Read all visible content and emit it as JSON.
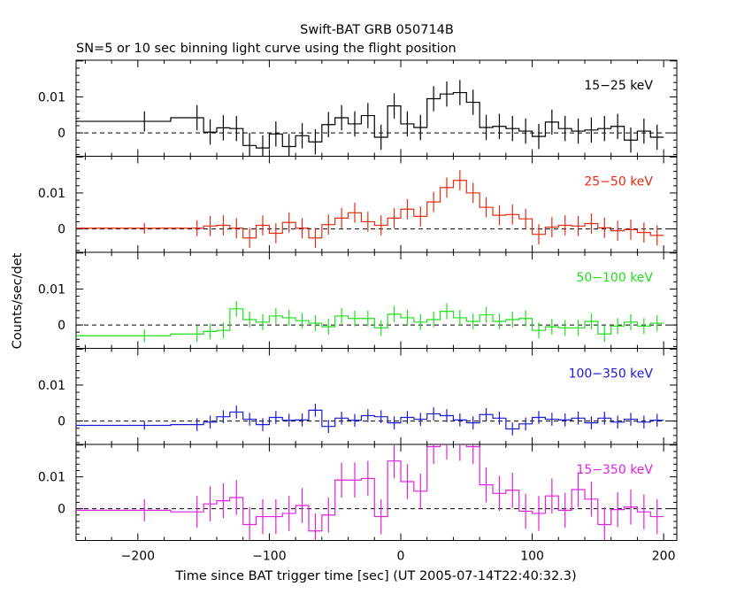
{
  "title": "Swift-BAT GRB 050714B",
  "subtitle": "SN=5 or 10 sec binning light curve using the flight position",
  "xlabel": "Time since BAT trigger time [sec] (UT 2005-07-14T22:40:32.3)",
  "ylabel": "Counts/sec/det",
  "chart_data": {
    "type": "line",
    "title": "Swift-BAT GRB 050714B",
    "subtitle": "SN=5 or 10 sec binning light curve using the flight position",
    "xlabel": "Time since BAT trigger time [sec] (UT 2005-07-14T22:40:32.3)",
    "ylabel": "Counts/sec/det",
    "xlim": [
      -247,
      210
    ],
    "xticks": [
      -200,
      -100,
      0,
      100,
      200
    ],
    "xticklabels": [
      "−200",
      "−100",
      "0",
      "100",
      "200"
    ],
    "yticks": [
      0,
      0.01
    ],
    "yticklabels": [
      "0",
      "0.01"
    ],
    "reference_line": 0,
    "panels": [
      {
        "label": "15−25 keV",
        "color": "#000000",
        "ylim": [
          -0.0065,
          0.0202
        ],
        "x": [
          -195,
          -155,
          -145,
          -135,
          -125,
          -115,
          -105,
          -95,
          -85,
          -75,
          -65,
          -55,
          -45,
          -35,
          -25,
          -15,
          -5,
          5,
          15,
          25,
          35,
          45,
          55,
          65,
          75,
          85,
          95,
          105,
          115,
          125,
          135,
          145,
          155,
          165,
          175,
          185,
          195
        ],
        "y": [
          0.0032,
          0.0042,
          0.0002,
          0.0014,
          0.0012,
          -0.0035,
          -0.0042,
          -0.0003,
          -0.0038,
          -0.0008,
          -0.0025,
          0.0023,
          0.0042,
          0.0025,
          0.0048,
          -0.0012,
          0.0075,
          0.0025,
          0.0015,
          0.0095,
          0.0108,
          0.0112,
          0.0085,
          0.0015,
          0.0018,
          0.0012,
          0.0005,
          -0.001,
          0.003,
          0.0012,
          0.0005,
          0.0008,
          0.0012,
          0.0018,
          -0.002,
          0.0005,
          -0.0012
        ],
        "err": [
          0.0028,
          0.0035,
          0.0035,
          0.0035,
          0.0035,
          0.0035,
          0.0035,
          0.0035,
          0.0035,
          0.0035,
          0.0035,
          0.0035,
          0.0035,
          0.0035,
          0.0035,
          0.0035,
          0.0035,
          0.0035,
          0.0035,
          0.0035,
          0.0035,
          0.0035,
          0.0035,
          0.0035,
          0.0035,
          0.0035,
          0.0035,
          0.0035,
          0.0035,
          0.0035,
          0.0035,
          0.0035,
          0.0035,
          0.0035,
          0.0035,
          0.0035,
          0.0035
        ]
      },
      {
        "label": "25−50 keV",
        "color": "#e82a10",
        "ylim": [
          -0.0065,
          0.0202
        ],
        "x": [
          -195,
          -155,
          -145,
          -135,
          -125,
          -115,
          -105,
          -95,
          -85,
          -75,
          -65,
          -55,
          -45,
          -35,
          -25,
          -15,
          -5,
          5,
          15,
          25,
          35,
          45,
          55,
          65,
          75,
          85,
          95,
          105,
          115,
          125,
          135,
          145,
          155,
          165,
          175,
          185,
          195
        ],
        "y": [
          0.0002,
          0.0002,
          0.0008,
          0.001,
          0.0002,
          -0.0025,
          0.001,
          -0.0012,
          0.0018,
          0.0002,
          -0.0025,
          0.0012,
          0.003,
          0.0045,
          0.002,
          0.001,
          0.003,
          0.0055,
          0.0035,
          0.0075,
          0.0115,
          0.0135,
          0.01,
          0.006,
          0.0038,
          0.004,
          0.0028,
          -0.0015,
          0.0005,
          0.001,
          0.0008,
          0.0015,
          0.0003,
          -0.0005,
          -0.0002,
          -0.001,
          -0.0018
        ],
        "err": [
          0.0015,
          0.0022,
          0.0028,
          0.0028,
          0.0028,
          0.0028,
          0.0028,
          0.0028,
          0.0028,
          0.0028,
          0.0028,
          0.0028,
          0.0028,
          0.0028,
          0.0028,
          0.0028,
          0.0028,
          0.0028,
          0.0028,
          0.0028,
          0.0028,
          0.0028,
          0.0028,
          0.0028,
          0.0028,
          0.0028,
          0.0028,
          0.0028,
          0.0028,
          0.0028,
          0.0028,
          0.0028,
          0.0028,
          0.0028,
          0.0028,
          0.0028,
          0.0028
        ]
      },
      {
        "label": "50−100 keV",
        "color": "#1ee01a",
        "ylim": [
          -0.0065,
          0.0202
        ],
        "x": [
          -195,
          -155,
          -145,
          -135,
          -125,
          -115,
          -105,
          -95,
          -85,
          -75,
          -65,
          -55,
          -45,
          -35,
          -25,
          -15,
          -5,
          5,
          15,
          25,
          35,
          45,
          55,
          65,
          75,
          85,
          95,
          105,
          115,
          125,
          135,
          145,
          155,
          165,
          175,
          185,
          195
        ],
        "y": [
          -0.003,
          -0.0025,
          -0.0018,
          -0.0015,
          0.0045,
          0.0015,
          0.0008,
          0.0025,
          0.002,
          0.0012,
          0.0005,
          -0.0005,
          0.0025,
          0.0018,
          0.0018,
          -0.0008,
          0.003,
          0.002,
          0.0008,
          0.0015,
          0.0038,
          0.002,
          0.001,
          0.0028,
          0.001,
          0.0015,
          0.0018,
          -0.0015,
          -0.0005,
          -0.0008,
          -0.0008,
          0.001,
          -0.0025,
          -0.0003,
          0.0008,
          -0.0003,
          0.0005
        ],
        "err": [
          0.0018,
          0.0022,
          0.0022,
          0.0022,
          0.0022,
          0.0022,
          0.0022,
          0.0022,
          0.0022,
          0.0022,
          0.0022,
          0.0022,
          0.0022,
          0.0022,
          0.0022,
          0.0022,
          0.0022,
          0.0022,
          0.0022,
          0.0022,
          0.0022,
          0.0022,
          0.0022,
          0.0022,
          0.0022,
          0.0022,
          0.0022,
          0.0022,
          0.0022,
          0.0022,
          0.0022,
          0.0022,
          0.0022,
          0.0022,
          0.0022,
          0.0022,
          0.0022
        ]
      },
      {
        "label": "100−350 keV",
        "color": "#1a1ad8",
        "ylim": [
          -0.0065,
          0.0202
        ],
        "x": [
          -195,
          -155,
          -145,
          -135,
          -125,
          -115,
          -105,
          -95,
          -85,
          -75,
          -65,
          -55,
          -45,
          -35,
          -25,
          -15,
          -5,
          5,
          15,
          25,
          35,
          45,
          55,
          65,
          75,
          85,
          95,
          105,
          115,
          125,
          135,
          145,
          155,
          165,
          175,
          185,
          195
        ],
        "y": [
          -0.0012,
          -0.001,
          -0.0003,
          0.0012,
          0.0025,
          0.0005,
          -0.001,
          0.001,
          0.0002,
          0.0003,
          0.003,
          -0.0015,
          0.0008,
          0.0002,
          0.0015,
          0.0012,
          -0.0005,
          0.001,
          0.0005,
          0.002,
          0.0015,
          0.0003,
          -0.0005,
          0.0018,
          0.0008,
          -0.0022,
          -0.0008,
          0.001,
          0.0005,
          0.0003,
          0.0008,
          -0.0005,
          0.0008,
          -0.0003,
          0.0005,
          -0.0003,
          0.0002
        ],
        "err": [
          0.0012,
          0.0018,
          0.0018,
          0.0018,
          0.0018,
          0.0018,
          0.0018,
          0.0018,
          0.0018,
          0.0018,
          0.0018,
          0.0018,
          0.0018,
          0.0018,
          0.0018,
          0.0018,
          0.0018,
          0.0018,
          0.0018,
          0.0018,
          0.0018,
          0.0018,
          0.0018,
          0.0018,
          0.0018,
          0.0018,
          0.0018,
          0.0018,
          0.0018,
          0.0018,
          0.0018,
          0.0018,
          0.0018,
          0.0018,
          0.0018,
          0.0018,
          0.0018
        ]
      },
      {
        "label": "15−350 keV",
        "color": "#e020e0",
        "ylim": [
          -0.01,
          0.0202
        ],
        "x": [
          -195,
          -155,
          -145,
          -135,
          -125,
          -115,
          -105,
          -95,
          -85,
          -75,
          -65,
          -55,
          -45,
          -35,
          -25,
          -15,
          -5,
          5,
          15,
          25,
          35,
          45,
          55,
          65,
          75,
          85,
          95,
          105,
          115,
          125,
          135,
          145,
          155,
          165,
          175,
          185,
          195
        ],
        "y": [
          -0.0005,
          -0.001,
          0.0015,
          0.0025,
          0.0035,
          -0.005,
          -0.0025,
          -0.0025,
          -0.0015,
          0.001,
          -0.007,
          -0.002,
          0.009,
          0.009,
          0.0095,
          -0.0025,
          0.015,
          0.0085,
          0.0055,
          0.0195,
          0.021,
          0.0205,
          0.0195,
          0.0075,
          0.0048,
          0.0058,
          -0.0008,
          -0.0015,
          0.004,
          -0.0005,
          0.006,
          0.003,
          -0.005,
          -0.0003,
          0.0005,
          -0.001,
          -0.0025
        ],
        "err": [
          0.0035,
          0.005,
          0.0055,
          0.0055,
          0.0055,
          0.0055,
          0.0055,
          0.0055,
          0.0055,
          0.0055,
          0.0055,
          0.0055,
          0.0055,
          0.0055,
          0.0055,
          0.0055,
          0.0055,
          0.0055,
          0.0055,
          0.0055,
          0.0055,
          0.0055,
          0.0055,
          0.0055,
          0.0055,
          0.0055,
          0.0055,
          0.0055,
          0.0055,
          0.0055,
          0.0055,
          0.0055,
          0.0055,
          0.0055,
          0.0055,
          0.0055,
          0.0055
        ]
      }
    ]
  }
}
